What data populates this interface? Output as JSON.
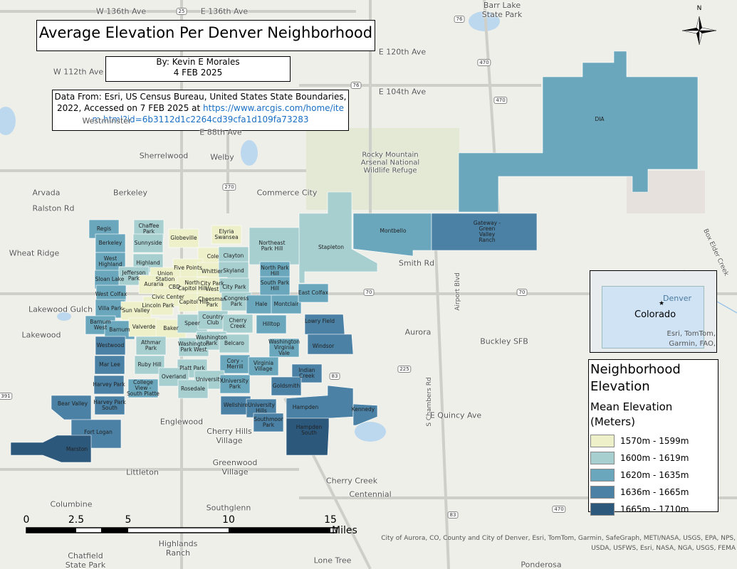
{
  "header": {
    "title": "Average Elevation Per Denver Neighborhood",
    "author": "By: Kevin E Morales",
    "date": "4 FEB 2025"
  },
  "source": {
    "text": "Data From: Esri, US Census Bureau, United States State Boundaries, 2022, Accessed on 7 FEB 2025 at",
    "link": "https://www.arcgis.com/home/item.html?id=6b3112d1c2264cd39cfa1d109fa73283"
  },
  "north": "N",
  "neighborhoods": [
    {
      "label": "DIA",
      "color": "#6aa7bd"
    },
    {
      "label": "Stapleton",
      "color": "#a7cfd0"
    },
    {
      "label": "Montbello",
      "color": "#6aa7bd"
    },
    {
      "label": "Gateway - Green Valley Ranch",
      "color": "#4a81a5"
    },
    {
      "label": "Northeast Park Hill",
      "color": "#a7cfd0"
    },
    {
      "label": "Regis",
      "color": "#6aa7bd"
    },
    {
      "label": "Chaffee Park",
      "color": "#a7cfd0"
    },
    {
      "label": "Globeville",
      "color": "#edf0c9"
    },
    {
      "label": "Elyria Swansea",
      "color": "#edf0c9"
    },
    {
      "label": "Berkeley",
      "color": "#6aa7bd"
    },
    {
      "label": "Sunnyside",
      "color": "#a7cfd0"
    },
    {
      "label": "Cole",
      "color": "#edf0c9"
    },
    {
      "label": "Clayton",
      "color": "#a7cfd0"
    },
    {
      "label": "West Highland",
      "color": "#6aa7bd"
    },
    {
      "label": "Highland",
      "color": "#a7cfd0"
    },
    {
      "label": "Five Points",
      "color": "#edf0c9"
    },
    {
      "label": "Whittier",
      "color": "#edf0c9"
    },
    {
      "label": "Skyland",
      "color": "#a7cfd0"
    },
    {
      "label": "North Park Hill",
      "color": "#6aa7bd"
    },
    {
      "label": "Sloan Lake",
      "color": "#6aa7bd"
    },
    {
      "label": "Jefferson Park",
      "color": "#a7cfd0"
    },
    {
      "label": "Union Station",
      "color": "#edf0c9"
    },
    {
      "label": "Auraria",
      "color": "#edf0c9"
    },
    {
      "label": "CBD",
      "color": "#edf0c9"
    },
    {
      "label": "North Capitol Hill",
      "color": "#edf0c9"
    },
    {
      "label": "City Park West",
      "color": "#edf0c9"
    },
    {
      "label": "City Park",
      "color": "#a7cfd0"
    },
    {
      "label": "South Park Hill",
      "color": "#6aa7bd"
    },
    {
      "label": "West Colfax",
      "color": "#6aa7bd"
    },
    {
      "label": "Civic Center",
      "color": "#edf0c9"
    },
    {
      "label": "Capitol Hill",
      "color": "#edf0c9"
    },
    {
      "label": "Cheesman Park",
      "color": "#edf0c9"
    },
    {
      "label": "Congress Park",
      "color": "#a7cfd0"
    },
    {
      "label": "Hale",
      "color": "#6aa7bd"
    },
    {
      "label": "Montclair",
      "color": "#6aa7bd"
    },
    {
      "label": "East Colfax",
      "color": "#6aa7bd"
    },
    {
      "label": "Lincoln Park",
      "color": "#edf0c9"
    },
    {
      "label": "Villa Park",
      "color": "#6aa7bd"
    },
    {
      "label": "Sun Valley",
      "color": "#edf0c9"
    },
    {
      "label": "Barnum West",
      "color": "#6aa7bd"
    },
    {
      "label": "Barnum",
      "color": "#6aa7bd"
    },
    {
      "label": "Valverde",
      "color": "#edf0c9"
    },
    {
      "label": "Baker",
      "color": "#edf0c9"
    },
    {
      "label": "Speer",
      "color": "#a7cfd0"
    },
    {
      "label": "Country Club",
      "color": "#a7cfd0"
    },
    {
      "label": "Cherry Creek",
      "color": "#a7cfd0"
    },
    {
      "label": "Hilltop",
      "color": "#6aa7bd"
    },
    {
      "label": "Lowry Field",
      "color": "#4a81a5"
    },
    {
      "label": "Windsor",
      "color": "#4a81a5"
    },
    {
      "label": "Washington Park West",
      "color": "#a7cfd0"
    },
    {
      "label": "Washington Park",
      "color": "#a7cfd0"
    },
    {
      "label": "Belcaro",
      "color": "#a7cfd0"
    },
    {
      "label": "Washington Virginia Vale",
      "color": "#6aa7bd"
    },
    {
      "label": "Westwood",
      "color": "#4a81a5"
    },
    {
      "label": "Athmar Park",
      "color": "#a7cfd0"
    },
    {
      "label": "Cory - Merrill",
      "color": "#6aa7bd"
    },
    {
      "label": "Virginia Village",
      "color": "#6aa7bd"
    },
    {
      "label": "Indian Creek",
      "color": "#4a81a5"
    },
    {
      "label": "Mar Lee",
      "color": "#4a81a5"
    },
    {
      "label": "Ruby Hill",
      "color": "#a7cfd0"
    },
    {
      "label": "Platt Park",
      "color": "#a7cfd0"
    },
    {
      "label": "Overland",
      "color": "#a7cfd0"
    },
    {
      "label": "University",
      "color": "#a7cfd0"
    },
    {
      "label": "University Park",
      "color": "#6aa7bd"
    },
    {
      "label": "Goldsmith",
      "color": "#4a81a5"
    },
    {
      "label": "Rosedale",
      "color": "#a7cfd0"
    },
    {
      "label": "College View - South Platte",
      "color": "#6aa7bd"
    },
    {
      "label": "Harvey Park",
      "color": "#4a81a5"
    },
    {
      "label": "Wellshire",
      "color": "#4a81a5"
    },
    {
      "label": "University Hills",
      "color": "#4a81a5"
    },
    {
      "label": "Hampden",
      "color": "#4a81a5"
    },
    {
      "label": "Kennedy",
      "color": "#4a81a5"
    },
    {
      "label": "Bear Valley",
      "color": "#4a81a5"
    },
    {
      "label": "Harvey Park South",
      "color": "#4a81a5"
    },
    {
      "label": "Southmoor Park",
      "color": "#4a81a5"
    },
    {
      "label": "Hampden South",
      "color": "#2c587c"
    },
    {
      "label": "Fort Logan",
      "color": "#4a81a5"
    },
    {
      "label": "Marston",
      "color": "#2c587c"
    }
  ],
  "places": [
    "W 136th Ave",
    "E 136th Ave",
    "Barr Lake State Park",
    "W 112th Ave",
    "E 120th Ave",
    "E 104th Ave",
    "E 88th Ave",
    "Westminster",
    "Sherrelwood",
    "Welby",
    "Arvada",
    "Berkeley",
    "Commerce City",
    "Rocky Mountain Arsenal National Wildlife Refuge",
    "Ralston Rd",
    "Wheat Ridge",
    "Smith Rd",
    "Airport Blvd",
    "Aurora",
    "Lakewood",
    "Lakewood Gulch",
    "Buckley SFB",
    "S Chambers Rd",
    "E Quincy Ave",
    "Englewood",
    "Cherry Hills Village",
    "Greenwood Village",
    "Littleton",
    "Cherry Creek",
    "Centennial",
    "Columbine",
    "Southglenn",
    "Highlands Ranch",
    "Chatfield State Park",
    "Lone Tree",
    "Ponderosa",
    "Box Elder Creek"
  ],
  "shields": [
    "25",
    "76",
    "470",
    "76",
    "470",
    "270",
    "70",
    "70",
    "225",
    "83",
    "83",
    "470",
    "391"
  ],
  "legend": {
    "title": "Neighborhood Elevation",
    "subtitle": "Mean Elevation (Meters)",
    "items": [
      {
        "label": "1570m - 1599m",
        "color": "#edf0c9"
      },
      {
        "label": "1600m - 1619m",
        "color": "#a7cfd0"
      },
      {
        "label": "1620m - 1635m",
        "color": "#6aa7bd"
      },
      {
        "label": "1636m - 1665m",
        "color": "#4a81a5"
      },
      {
        "label": "1665m - 1710m",
        "color": "#2c587c"
      }
    ]
  },
  "inset": {
    "city": "Denver",
    "state": "Colorado",
    "credit": "Esri, TomTom, Garmin, FAO,"
  },
  "scale_bar": {
    "ticks": [
      "0",
      "2.5",
      "5",
      "10",
      "15"
    ],
    "unit": "Miles"
  },
  "credits": "City of Aurora, CO, County and City of Denver, Esri, TomTom, Garmin, SafeGraph, METI/NASA, USGS, EPA, NPS, USDA, USFWS, Esri, NASA, NGA, USGS, FEMA"
}
